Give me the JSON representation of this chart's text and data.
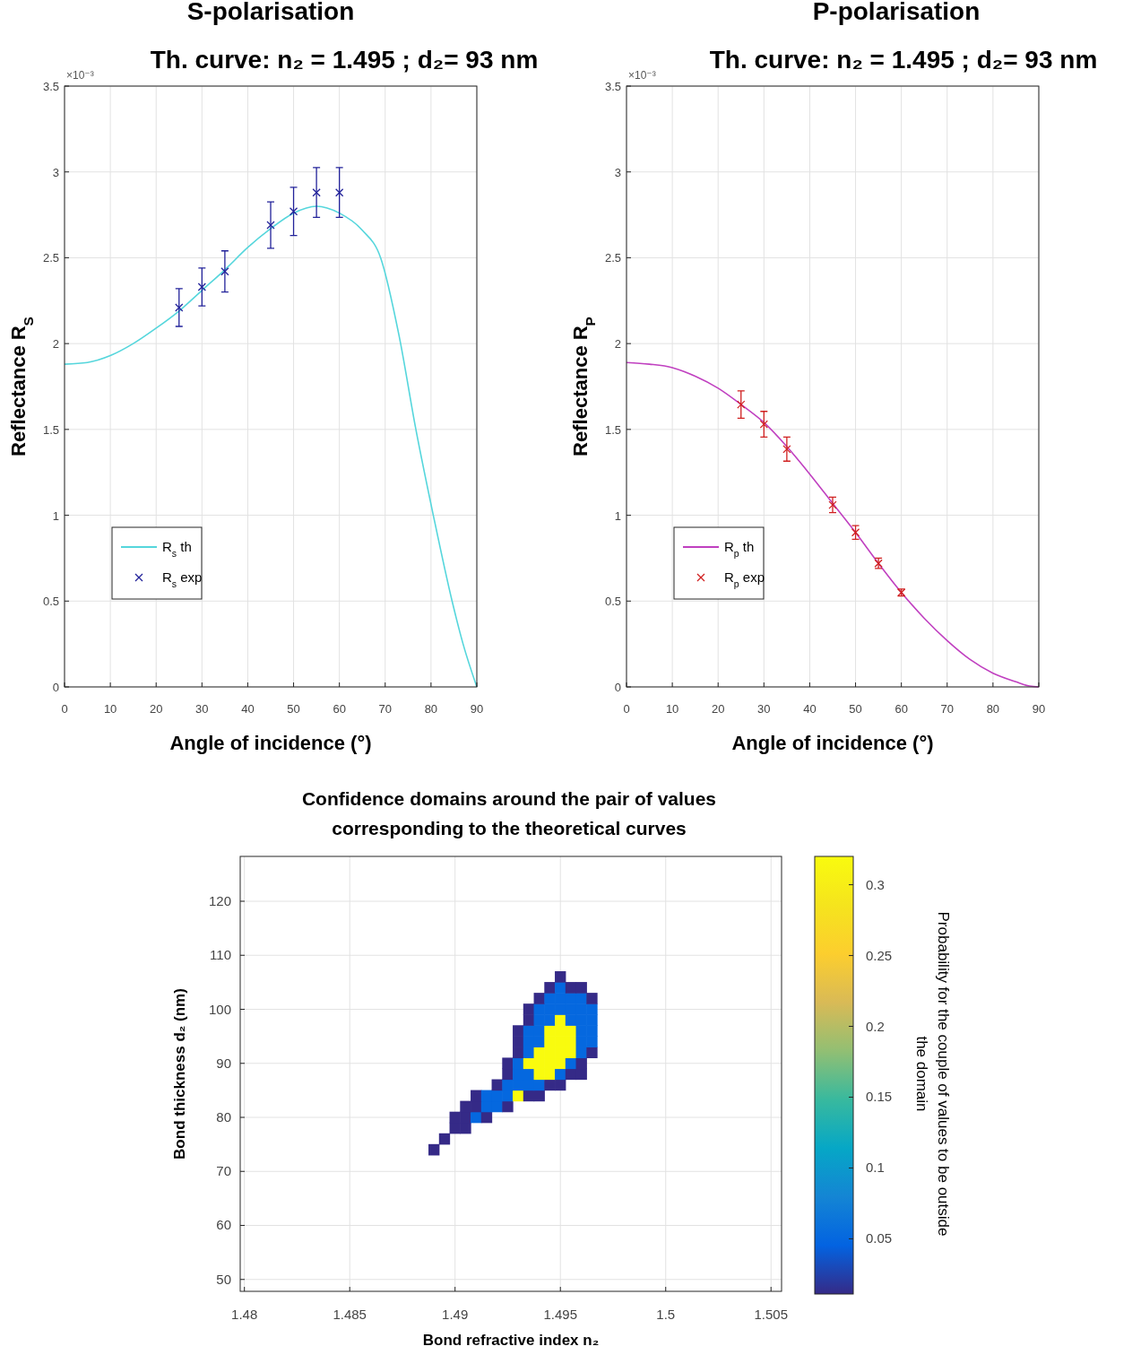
{
  "chart_data": [
    {
      "type": "line",
      "title": "S-polarisation",
      "subtitle": "Th. curve: n₂ = 1.495 ; d₂= 93 nm",
      "xlabel": "Angle of incidence (°)",
      "ylabel": "Reflectance R$_{S}$",
      "annotations": [
        "×10⁻³"
      ],
      "xlim": [
        0,
        90
      ],
      "ylim": [
        0,
        3.5
      ],
      "xticks": [
        0,
        10,
        20,
        30,
        40,
        50,
        60,
        70,
        80,
        90
      ],
      "yticks": [
        0,
        0.5,
        1,
        1.5,
        2,
        2.5,
        3,
        3.5
      ],
      "grid": true,
      "legend": "bottom left",
      "series": [
        {
          "name": "R$_{s}$ th",
          "color": "#55d6dc",
          "marker": "none",
          "x": [
            0,
            5,
            10,
            15,
            20,
            25,
            30,
            35,
            40,
            45,
            50,
            55,
            60,
            65,
            69,
            73,
            76.7,
            80.5,
            84.6,
            87,
            90
          ],
          "values": [
            1.88,
            1.89,
            1.93,
            2.0,
            2.09,
            2.19,
            2.31,
            2.43,
            2.56,
            2.67,
            2.76,
            2.8,
            2.76,
            2.66,
            2.5,
            2.05,
            1.5,
            1.0,
            0.5,
            0.25,
            0
          ]
        },
        {
          "name": "R$_{s}$ exp",
          "color": "#22229a",
          "type": "scatter",
          "marker": "cross",
          "x": [
            25,
            30,
            35,
            45,
            50,
            55,
            60
          ],
          "values": [
            2.21,
            2.33,
            2.42,
            2.69,
            2.77,
            2.88,
            2.88
          ],
          "errors": [
            0.11,
            0.11,
            0.12,
            0.135,
            0.14,
            0.145,
            0.145
          ]
        }
      ]
    },
    {
      "type": "line",
      "title": "P-polarisation",
      "subtitle": "Th. curve: n₂ = 1.495 ; d₂= 93 nm",
      "xlabel": "Angle of incidence (°)",
      "ylabel": "Reflectance R$_{P}$",
      "annotations": [
        "×10⁻³"
      ],
      "xlim": [
        0,
        90
      ],
      "ylim": [
        0,
        3.5
      ],
      "xticks": [
        0,
        10,
        20,
        30,
        40,
        50,
        60,
        70,
        80,
        90
      ],
      "yticks": [
        0,
        0.5,
        1,
        1.5,
        2,
        2.5,
        3,
        3.5
      ],
      "grid": true,
      "legend": "bottom left",
      "series": [
        {
          "name": "R$_{p}$ th",
          "color": "#c040c0",
          "marker": "none",
          "x": [
            0,
            5,
            10,
            15,
            20,
            25,
            30,
            35,
            40,
            45,
            50,
            55,
            60,
            65,
            70,
            75,
            80,
            85,
            88,
            90
          ],
          "values": [
            1.89,
            1.88,
            1.86,
            1.81,
            1.74,
            1.645,
            1.54,
            1.4,
            1.24,
            1.07,
            0.9,
            0.72,
            0.55,
            0.4,
            0.27,
            0.16,
            0.08,
            0.03,
            0.005,
            0
          ]
        },
        {
          "name": "R$_{p}$ exp",
          "color": "#d02020",
          "type": "scatter",
          "marker": "cross",
          "x": [
            25,
            30,
            35,
            45,
            50,
            55,
            60
          ],
          "values": [
            1.645,
            1.53,
            1.385,
            1.06,
            0.9,
            0.72,
            0.55
          ],
          "errors": [
            0.08,
            0.075,
            0.07,
            0.045,
            0.04,
            0.03,
            0.02
          ]
        }
      ]
    },
    {
      "type": "scatter",
      "title": "Confidence domains around the pair of values corresponding to the theoretical curves",
      "xlabel": "Bond refractive index n₂",
      "ylabel": "Bond thickness d₂ (nm)",
      "clabel": "Probability for the couple of values to be outside the domain",
      "xlim": [
        1.4798,
        1.5055
      ],
      "ylim": [
        47.8,
        128.3
      ],
      "xticks": [
        1.48,
        1.485,
        1.49,
        1.495,
        1.5,
        1.505
      ],
      "yticks": [
        50,
        60,
        70,
        80,
        90,
        100,
        110,
        120
      ],
      "clim": [
        0.011,
        0.32
      ],
      "cticks": [
        0.05,
        0.1,
        0.15,
        0.2,
        0.25,
        0.3
      ],
      "grid": true,
      "marker": "square",
      "series": [
        {
          "x": [
            1.489,
            1.4895,
            1.49,
            1.4905,
            1.49,
            1.4905,
            1.491,
            1.4915,
            1.4905,
            1.491,
            1.4915,
            1.492,
            1.4925,
            1.491,
            1.4915,
            1.492,
            1.4925,
            1.493,
            1.4935,
            1.494,
            1.492,
            1.4925,
            1.493,
            1.4935,
            1.494,
            1.4945,
            1.495,
            1.4925,
            1.493,
            1.4935,
            1.494,
            1.4945,
            1.495,
            1.4955,
            1.496,
            1.4925,
            1.493,
            1.4935,
            1.494,
            1.4945,
            1.495,
            1.4955,
            1.496,
            1.493,
            1.4935,
            1.494,
            1.4945,
            1.495,
            1.4955,
            1.496,
            1.4965,
            1.493,
            1.4935,
            1.494,
            1.4945,
            1.495,
            1.4955,
            1.496,
            1.4965,
            1.493,
            1.4935,
            1.494,
            1.4945,
            1.495,
            1.4955,
            1.496,
            1.4965,
            1.4935,
            1.494,
            1.4945,
            1.495,
            1.4955,
            1.496,
            1.4965,
            1.4935,
            1.494,
            1.4945,
            1.495,
            1.4955,
            1.496,
            1.4965,
            1.494,
            1.4945,
            1.495,
            1.4955,
            1.496,
            1.4965,
            1.4945,
            1.495,
            1.4955,
            1.496,
            1.495
          ],
          "values": [
            74,
            76,
            78,
            78,
            80,
            80,
            80,
            80,
            82,
            82,
            82,
            82,
            82,
            84,
            84,
            84,
            84,
            84,
            84,
            84,
            86,
            86,
            86,
            86,
            86,
            86,
            86,
            88,
            88,
            88,
            88,
            88,
            88,
            88,
            88,
            90,
            90,
            90,
            90,
            90,
            90,
            90,
            90,
            92,
            92,
            92,
            92,
            92,
            92,
            92,
            92,
            94,
            94,
            94,
            94,
            94,
            94,
            94,
            94,
            96,
            96,
            96,
            96,
            96,
            96,
            96,
            96,
            98,
            98,
            98,
            98,
            98,
            98,
            98,
            100,
            100,
            100,
            100,
            100,
            100,
            100,
            102,
            102,
            102,
            102,
            102,
            102,
            104,
            104,
            104,
            104,
            106
          ],
          "cvalues": [
            0.011,
            0.011,
            0.011,
            0.011,
            0.011,
            0.011,
            0.05,
            0.011,
            0.011,
            0.011,
            0.05,
            0.05,
            0.011,
            0.011,
            0.05,
            0.05,
            0.05,
            0.32,
            0.011,
            0.011,
            0.011,
            0.05,
            0.05,
            0.05,
            0.05,
            0.011,
            0.011,
            0.011,
            0.05,
            0.05,
            0.32,
            0.32,
            0.05,
            0.011,
            0.011,
            0.011,
            0.05,
            0.32,
            0.32,
            0.32,
            0.32,
            0.05,
            0.011,
            0.011,
            0.05,
            0.32,
            0.32,
            0.32,
            0.32,
            0.05,
            0.011,
            0.011,
            0.05,
            0.05,
            0.32,
            0.32,
            0.32,
            0.05,
            0.05,
            0.011,
            0.05,
            0.05,
            0.32,
            0.32,
            0.32,
            0.05,
            0.05,
            0.011,
            0.05,
            0.05,
            0.32,
            0.05,
            0.05,
            0.05,
            0.011,
            0.05,
            0.05,
            0.05,
            0.05,
            0.05,
            0.05,
            0.011,
            0.05,
            0.05,
            0.05,
            0.05,
            0.011,
            0.011,
            0.05,
            0.011,
            0.011,
            0.011
          ]
        }
      ]
    }
  ]
}
